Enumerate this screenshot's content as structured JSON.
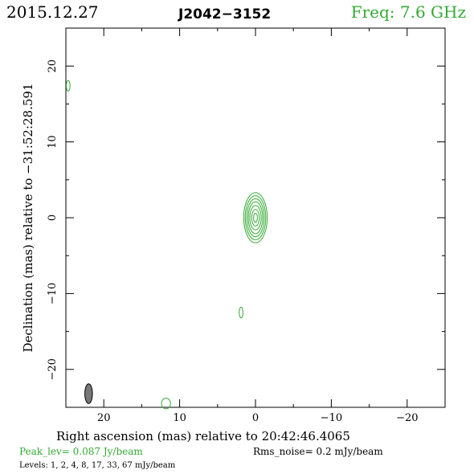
{
  "header": {
    "date": "2015.12.27",
    "source": "J2042−3152",
    "freq": "Freq: 7.6 GHz"
  },
  "footer": {
    "peak": "Peak_lev=  0.087 Jy/beam",
    "rms": "Rms_noise=   0.2 mJy/beam",
    "levels": "Levels:   1,   2,   4,   8,  17,  33,  67 mJy/beam"
  },
  "colors": {
    "contour": "#33aa33",
    "beam": "#777777",
    "frame": "#000000"
  },
  "chart_data": {
    "type": "contour",
    "xlabel": "Right ascension (mas) relative to 20:42:46.4065",
    "ylabel": "Declination (mas) relative to −31:52:28.591",
    "xlim": [
      25,
      -25
    ],
    "ylim": [
      -25,
      25
    ],
    "xticks": [
      20,
      10,
      0,
      -10,
      -20
    ],
    "xtick_labels": [
      "20",
      "10",
      "0",
      "−10",
      "−20"
    ],
    "yticks": [
      20,
      10,
      0,
      -10,
      -20
    ],
    "ytick_labels": [
      "20",
      "10",
      "0",
      "−10",
      "−20"
    ],
    "levels_mJy": [
      1,
      2,
      4,
      8,
      17,
      33,
      67
    ],
    "peak_Jy_per_beam": 0.087,
    "rms_mJy_per_beam": 0.2,
    "core": {
      "x": 0.0,
      "y": 0.0,
      "contours": [
        {
          "rx": 1.55,
          "ry": 3.3
        },
        {
          "rx": 1.35,
          "ry": 2.9
        },
        {
          "rx": 1.15,
          "ry": 2.5
        },
        {
          "rx": 0.95,
          "ry": 2.1
        },
        {
          "rx": 0.75,
          "ry": 1.6
        },
        {
          "rx": 0.5,
          "ry": 1.1
        },
        {
          "rx": 0.25,
          "ry": 0.6
        }
      ]
    },
    "islands": [
      {
        "x": 24.7,
        "y": 17.4,
        "rx": 0.25,
        "ry": 0.7
      },
      {
        "x": 1.9,
        "y": -12.5,
        "rx": 0.25,
        "ry": 0.7
      },
      {
        "x": 11.8,
        "y": -24.5,
        "rx": 0.6,
        "ry": 0.7
      }
    ],
    "beam": {
      "x": 22.0,
      "y": -23.2,
      "rx": 0.5,
      "ry": 1.3
    }
  }
}
